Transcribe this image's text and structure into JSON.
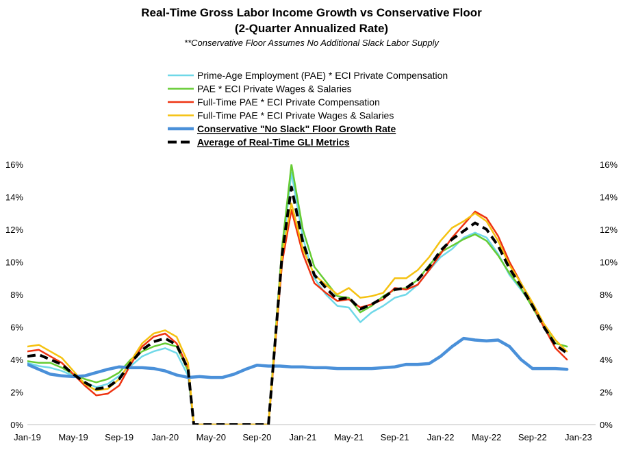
{
  "chart_data": {
    "type": "line",
    "title": "Real-Time Gross Labor Income Growth vs Conservative Floor",
    "title_line2": "(2-Quarter Annualized Rate)",
    "subtitle": "**Conservative Floor Assumes No Additional Slack Labor Supply",
    "ylim": [
      0,
      16
    ],
    "y_ticks": [
      "0%",
      "2%",
      "4%",
      "6%",
      "8%",
      "10%",
      "12%",
      "14%",
      "16%"
    ],
    "x_ticks": [
      "Jan-19",
      "May-19",
      "Sep-19",
      "Jan-20",
      "May-20",
      "Sep-20",
      "Jan-21",
      "May-21",
      "Sep-21",
      "Jan-22",
      "May-22",
      "Sep-22",
      "Jan-23"
    ],
    "x_tick_months": [
      0,
      4,
      8,
      12,
      16,
      20,
      24,
      28,
      32,
      36,
      40,
      44,
      48
    ],
    "legend_position": "top",
    "series": [
      {
        "name": "Prime-Age Employment (PAE) * ECI Private Compensation",
        "color": "#6fd8e8",
        "width": 2.5,
        "dash": "",
        "bold": false,
        "points": [
          [
            0,
            3.8
          ],
          [
            1,
            3.6
          ],
          [
            2,
            3.5
          ],
          [
            3,
            3.3
          ],
          [
            4,
            3.0
          ],
          [
            5,
            2.6
          ],
          [
            6,
            2.3
          ],
          [
            7,
            2.5
          ],
          [
            8,
            3.0
          ],
          [
            9,
            3.6
          ],
          [
            10,
            4.2
          ],
          [
            11,
            4.5
          ],
          [
            12,
            4.7
          ],
          [
            13,
            4.4
          ],
          [
            14,
            3.0
          ],
          [
            14.5,
            0
          ],
          [
            21,
            0
          ],
          [
            22.2,
            10.5
          ],
          [
            23,
            15.5
          ],
          [
            24,
            11.5
          ],
          [
            25,
            9.0
          ],
          [
            26,
            8.0
          ],
          [
            27,
            7.3
          ],
          [
            28,
            7.2
          ],
          [
            29,
            6.3
          ],
          [
            30,
            6.9
          ],
          [
            31,
            7.3
          ],
          [
            32,
            7.8
          ],
          [
            33,
            8.0
          ],
          [
            34,
            8.6
          ],
          [
            35,
            9.5
          ],
          [
            36,
            10.3
          ],
          [
            37,
            10.8
          ],
          [
            38,
            11.5
          ],
          [
            39,
            11.8
          ],
          [
            40,
            11.5
          ],
          [
            41,
            10.5
          ],
          [
            42,
            9.2
          ],
          [
            43,
            8.3
          ],
          [
            44,
            7.3
          ],
          [
            45,
            6.0
          ],
          [
            46,
            5.0
          ],
          [
            47,
            4.8
          ]
        ]
      },
      {
        "name": "PAE * ECI Private Wages & Salaries",
        "color": "#66cc33",
        "width": 2.5,
        "dash": "",
        "bold": false,
        "points": [
          [
            0,
            3.9
          ],
          [
            1,
            3.8
          ],
          [
            2,
            3.8
          ],
          [
            3,
            3.5
          ],
          [
            4,
            3.1
          ],
          [
            5,
            2.8
          ],
          [
            6,
            2.6
          ],
          [
            7,
            2.8
          ],
          [
            8,
            3.2
          ],
          [
            9,
            4.0
          ],
          [
            10,
            4.5
          ],
          [
            11,
            4.8
          ],
          [
            12,
            5.0
          ],
          [
            13,
            4.8
          ],
          [
            14,
            3.3
          ],
          [
            14.5,
            0
          ],
          [
            21,
            0
          ],
          [
            22.2,
            11
          ],
          [
            23,
            16.0
          ],
          [
            24,
            12.0
          ],
          [
            25,
            9.7
          ],
          [
            26,
            8.8
          ],
          [
            27,
            7.9
          ],
          [
            28,
            7.8
          ],
          [
            29,
            6.9
          ],
          [
            30,
            7.3
          ],
          [
            31,
            7.9
          ],
          [
            32,
            8.3
          ],
          [
            33,
            8.4
          ],
          [
            34,
            8.9
          ],
          [
            35,
            9.8
          ],
          [
            36,
            10.6
          ],
          [
            37,
            11.0
          ],
          [
            38,
            11.4
          ],
          [
            39,
            11.7
          ],
          [
            40,
            11.3
          ],
          [
            41,
            10.4
          ],
          [
            42,
            9.3
          ],
          [
            43,
            8.4
          ],
          [
            44,
            7.2
          ],
          [
            45,
            6.0
          ],
          [
            46,
            5.0
          ],
          [
            47,
            4.8
          ]
        ]
      },
      {
        "name": "Full-Time PAE * ECI Private Compensation",
        "color": "#ee3311",
        "width": 2.5,
        "dash": "",
        "bold": false,
        "points": [
          [
            0,
            4.5
          ],
          [
            1,
            4.6
          ],
          [
            2,
            4.2
          ],
          [
            3,
            3.8
          ],
          [
            4,
            3.1
          ],
          [
            5,
            2.4
          ],
          [
            6,
            1.8
          ],
          [
            7,
            1.9
          ],
          [
            8,
            2.4
          ],
          [
            9,
            3.7
          ],
          [
            10,
            4.8
          ],
          [
            11,
            5.4
          ],
          [
            12,
            5.6
          ],
          [
            13,
            5.0
          ],
          [
            14,
            3.5
          ],
          [
            14.5,
            0
          ],
          [
            21,
            0
          ],
          [
            22.2,
            10
          ],
          [
            23,
            13.2
          ],
          [
            24,
            10.5
          ],
          [
            25,
            8.7
          ],
          [
            26,
            8.1
          ],
          [
            27,
            7.6
          ],
          [
            28,
            7.7
          ],
          [
            29,
            7.2
          ],
          [
            30,
            7.4
          ],
          [
            31,
            7.7
          ],
          [
            32,
            8.4
          ],
          [
            33,
            8.3
          ],
          [
            34,
            8.6
          ],
          [
            35,
            9.5
          ],
          [
            36,
            10.5
          ],
          [
            37,
            11.5
          ],
          [
            38,
            12.3
          ],
          [
            39,
            13.1
          ],
          [
            40,
            12.7
          ],
          [
            41,
            11.6
          ],
          [
            42,
            10.0
          ],
          [
            43,
            8.7
          ],
          [
            44,
            7.4
          ],
          [
            45,
            6.0
          ],
          [
            46,
            4.7
          ],
          [
            47,
            4.0
          ]
        ]
      },
      {
        "name": "Full-Time PAE * ECI Private Wages & Salaries",
        "color": "#f5c211",
        "width": 2.5,
        "dash": "",
        "bold": false,
        "points": [
          [
            0,
            4.8
          ],
          [
            1,
            4.9
          ],
          [
            2,
            4.5
          ],
          [
            3,
            4.1
          ],
          [
            4,
            3.3
          ],
          [
            5,
            2.5
          ],
          [
            6,
            2.1
          ],
          [
            7,
            2.2
          ],
          [
            8,
            2.8
          ],
          [
            9,
            3.9
          ],
          [
            10,
            5.0
          ],
          [
            11,
            5.6
          ],
          [
            12,
            5.8
          ],
          [
            13,
            5.4
          ],
          [
            14,
            3.8
          ],
          [
            14.5,
            0
          ],
          [
            21,
            0
          ],
          [
            22.2,
            10.5
          ],
          [
            23,
            13.6
          ],
          [
            24,
            10.8
          ],
          [
            25,
            9.2
          ],
          [
            26,
            8.6
          ],
          [
            27,
            8.0
          ],
          [
            28,
            8.4
          ],
          [
            29,
            7.8
          ],
          [
            30,
            7.9
          ],
          [
            31,
            8.1
          ],
          [
            32,
            9.0
          ],
          [
            33,
            9.0
          ],
          [
            34,
            9.5
          ],
          [
            35,
            10.3
          ],
          [
            36,
            11.3
          ],
          [
            37,
            12.1
          ],
          [
            38,
            12.5
          ],
          [
            39,
            13.0
          ],
          [
            40,
            12.5
          ],
          [
            41,
            11.3
          ],
          [
            42,
            9.8
          ],
          [
            43,
            8.7
          ],
          [
            44,
            7.5
          ],
          [
            45,
            6.2
          ],
          [
            46,
            5.2
          ],
          [
            47,
            4.5
          ]
        ]
      },
      {
        "name": "Conservative \"No Slack\" Floor Growth Rate",
        "color": "#4a90d9",
        "width": 4.5,
        "dash": "",
        "bold": true,
        "points": [
          [
            0,
            3.7
          ],
          [
            1,
            3.4
          ],
          [
            2,
            3.1
          ],
          [
            3,
            3.0
          ],
          [
            4,
            2.95
          ],
          [
            5,
            3.0
          ],
          [
            6,
            3.2
          ],
          [
            7,
            3.4
          ],
          [
            8,
            3.55
          ],
          [
            9,
            3.5
          ],
          [
            10,
            3.5
          ],
          [
            11,
            3.45
          ],
          [
            12,
            3.3
          ],
          [
            13,
            3.05
          ],
          [
            14,
            2.9
          ],
          [
            15,
            2.95
          ],
          [
            16,
            2.9
          ],
          [
            17,
            2.9
          ],
          [
            18,
            3.1
          ],
          [
            19,
            3.4
          ],
          [
            20,
            3.65
          ],
          [
            21,
            3.6
          ],
          [
            22,
            3.6
          ],
          [
            23,
            3.55
          ],
          [
            24,
            3.55
          ],
          [
            25,
            3.5
          ],
          [
            26,
            3.5
          ],
          [
            27,
            3.45
          ],
          [
            28,
            3.45
          ],
          [
            29,
            3.45
          ],
          [
            30,
            3.45
          ],
          [
            31,
            3.5
          ],
          [
            32,
            3.55
          ],
          [
            33,
            3.7
          ],
          [
            34,
            3.7
          ],
          [
            35,
            3.75
          ],
          [
            36,
            4.2
          ],
          [
            37,
            4.8
          ],
          [
            38,
            5.3
          ],
          [
            39,
            5.2
          ],
          [
            40,
            5.15
          ],
          [
            41,
            5.2
          ],
          [
            42,
            4.8
          ],
          [
            43,
            4.0
          ],
          [
            44,
            3.45
          ],
          [
            45,
            3.45
          ],
          [
            46,
            3.45
          ],
          [
            47,
            3.4
          ]
        ]
      },
      {
        "name": "Average of Real-Time GLI Metrics",
        "color": "#000000",
        "width": 4,
        "dash": "12 7",
        "bold": true,
        "points": [
          [
            0,
            4.2
          ],
          [
            1,
            4.3
          ],
          [
            2,
            4.0
          ],
          [
            3,
            3.7
          ],
          [
            4,
            3.1
          ],
          [
            5,
            2.6
          ],
          [
            6,
            2.2
          ],
          [
            7,
            2.3
          ],
          [
            8,
            2.8
          ],
          [
            9,
            3.8
          ],
          [
            10,
            4.6
          ],
          [
            11,
            5.1
          ],
          [
            12,
            5.3
          ],
          [
            13,
            4.9
          ],
          [
            14,
            3.4
          ],
          [
            14.5,
            0
          ],
          [
            21,
            0
          ],
          [
            22.2,
            10.5
          ],
          [
            23,
            14.6
          ],
          [
            24,
            11.2
          ],
          [
            25,
            9.2
          ],
          [
            26,
            8.4
          ],
          [
            27,
            7.7
          ],
          [
            28,
            7.8
          ],
          [
            29,
            7.1
          ],
          [
            30,
            7.4
          ],
          [
            31,
            7.8
          ],
          [
            32,
            8.3
          ],
          [
            33,
            8.4
          ],
          [
            34,
            8.9
          ],
          [
            35,
            9.7
          ],
          [
            36,
            10.7
          ],
          [
            37,
            11.4
          ],
          [
            38,
            11.9
          ],
          [
            39,
            12.4
          ],
          [
            40,
            12.0
          ],
          [
            41,
            11.0
          ],
          [
            42,
            9.6
          ],
          [
            43,
            8.5
          ],
          [
            44,
            7.3
          ],
          [
            45,
            6.0
          ],
          [
            46,
            4.9
          ],
          [
            47,
            4.4
          ]
        ]
      }
    ]
  }
}
